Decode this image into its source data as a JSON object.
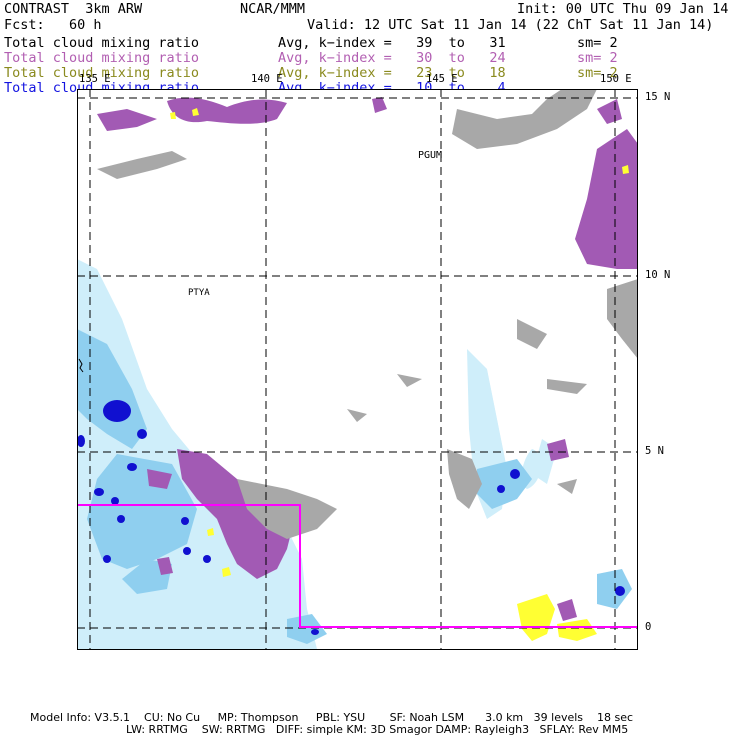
{
  "header": {
    "model": "CONTRAST  3km ARW",
    "center": "NCAR/MMM",
    "init": "Init: 00 UTC Thu 09 Jan 14",
    "fcst": "Fcst:   60 h",
    "valid": "Valid: 12 UTC Sat 11 Jan 14 (22 ChT Sat 11 Jan 14)"
  },
  "fields": [
    {
      "name": "Total cloud mixing ratio",
      "range": "Avg, k−index =   39  to   31",
      "sm": "sm= 2",
      "color": "#000000"
    },
    {
      "name": "Total cloud mixing ratio",
      "range": "Avg, k−index =   30  to   24",
      "sm": "sm= 2",
      "color": "#b25fb2"
    },
    {
      "name": "Total cloud mixing ratio",
      "range": "Avg, k−index =   23  to   18",
      "sm": "sm= 2",
      "color": "#8a8a1e"
    },
    {
      "name": "Total cloud mixing ratio",
      "range": "Avg, k−index =   10  to    4",
      "sm": "",
      "color": "#1414e0"
    }
  ],
  "map": {
    "lon_labels": [
      "135 E",
      "140 E",
      "145 E",
      "150 E"
    ],
    "lat_labels": [
      "15 N",
      "10 N",
      "5 N",
      "0"
    ],
    "place_labels": [
      "PGUM",
      "PTYA"
    ],
    "colors": {
      "low": "#a8a8a8",
      "mid": "#a25ab4",
      "midlow": "#ffff33",
      "high_light": "#cfeefa",
      "high_mid": "#8fcfef",
      "high_core": "#1010d0",
      "boundary": "#ff00ff"
    }
  },
  "footer": {
    "line1": "Model Info: V3.5.1    CU: No Cu     MP: Thompson     PBL: YSU       SF: Noah LSM      3.0 km   39 levels    18 sec",
    "line2": "LW: RRTMG    SW: RRTMG   DIFF: simple KM: 3D Smagor DAMP: Rayleigh3   SFLAY: Rev MM5"
  }
}
